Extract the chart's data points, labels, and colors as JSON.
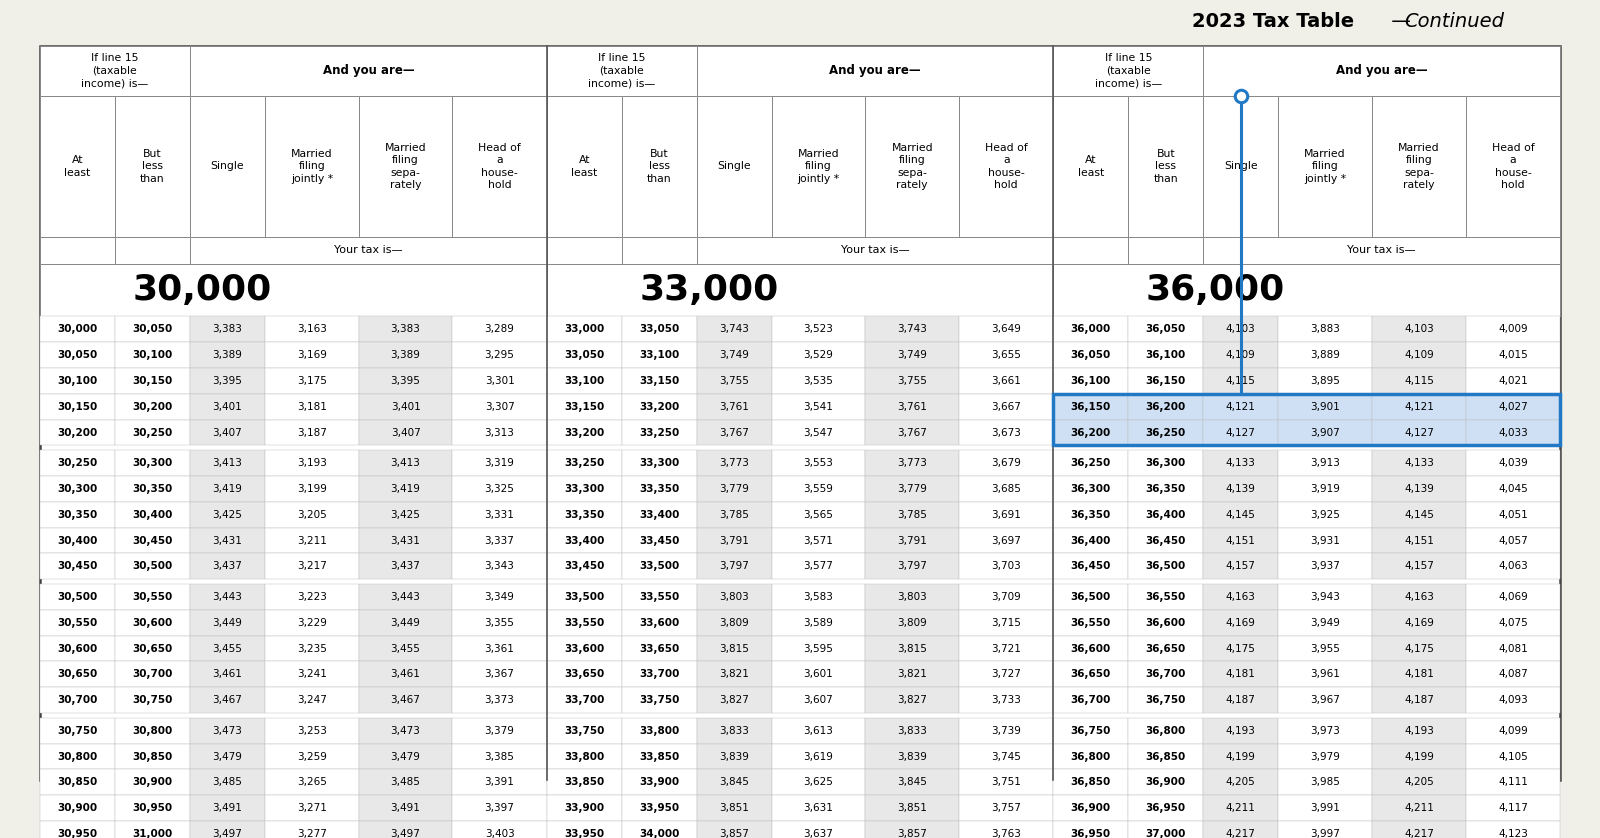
{
  "title_bold": "2023 Tax Table",
  "title_dash": " — ",
  "title_italic": "Continued",
  "bg_color": "#f0efe8",
  "table_bg": "#ffffff",
  "section_labels": [
    "30,000",
    "33,000",
    "36,000"
  ],
  "col_headers_left": [
    "At\nleast",
    "But\nless\nthan"
  ],
  "col_headers_right": [
    "Single",
    "Married\nfiling\njointly *",
    "Married\nfiling\nsepa-\nrately",
    "Head of\na\nhouse-\nhold"
  ],
  "sections": [
    {
      "rows": [
        [
          30000,
          30050,
          3383,
          3163,
          3383,
          3289
        ],
        [
          30050,
          30100,
          3389,
          3169,
          3389,
          3295
        ],
        [
          30100,
          30150,
          3395,
          3175,
          3395,
          3301
        ],
        [
          30150,
          30200,
          3401,
          3181,
          3401,
          3307
        ],
        [
          30200,
          30250,
          3407,
          3187,
          3407,
          3313
        ],
        [
          30250,
          30300,
          3413,
          3193,
          3413,
          3319
        ],
        [
          30300,
          30350,
          3419,
          3199,
          3419,
          3325
        ],
        [
          30350,
          30400,
          3425,
          3205,
          3425,
          3331
        ],
        [
          30400,
          30450,
          3431,
          3211,
          3431,
          3337
        ],
        [
          30450,
          30500,
          3437,
          3217,
          3437,
          3343
        ],
        [
          30500,
          30550,
          3443,
          3223,
          3443,
          3349
        ],
        [
          30550,
          30600,
          3449,
          3229,
          3449,
          3355
        ],
        [
          30600,
          30650,
          3455,
          3235,
          3455,
          3361
        ],
        [
          30650,
          30700,
          3461,
          3241,
          3461,
          3367
        ],
        [
          30700,
          30750,
          3467,
          3247,
          3467,
          3373
        ],
        [
          30750,
          30800,
          3473,
          3253,
          3473,
          3379
        ],
        [
          30800,
          30850,
          3479,
          3259,
          3479,
          3385
        ],
        [
          30850,
          30900,
          3485,
          3265,
          3485,
          3391
        ],
        [
          30900,
          30950,
          3491,
          3271,
          3491,
          3397
        ],
        [
          30950,
          31000,
          3497,
          3277,
          3497,
          3403
        ]
      ]
    },
    {
      "rows": [
        [
          33000,
          33050,
          3743,
          3523,
          3743,
          3649
        ],
        [
          33050,
          33100,
          3749,
          3529,
          3749,
          3655
        ],
        [
          33100,
          33150,
          3755,
          3535,
          3755,
          3661
        ],
        [
          33150,
          33200,
          3761,
          3541,
          3761,
          3667
        ],
        [
          33200,
          33250,
          3767,
          3547,
          3767,
          3673
        ],
        [
          33250,
          33300,
          3773,
          3553,
          3773,
          3679
        ],
        [
          33300,
          33350,
          3779,
          3559,
          3779,
          3685
        ],
        [
          33350,
          33400,
          3785,
          3565,
          3785,
          3691
        ],
        [
          33400,
          33450,
          3791,
          3571,
          3791,
          3697
        ],
        [
          33450,
          33500,
          3797,
          3577,
          3797,
          3703
        ],
        [
          33500,
          33550,
          3803,
          3583,
          3803,
          3709
        ],
        [
          33550,
          33600,
          3809,
          3589,
          3809,
          3715
        ],
        [
          33600,
          33650,
          3815,
          3595,
          3815,
          3721
        ],
        [
          33650,
          33700,
          3821,
          3601,
          3821,
          3727
        ],
        [
          33700,
          33750,
          3827,
          3607,
          3827,
          3733
        ],
        [
          33750,
          33800,
          3833,
          3613,
          3833,
          3739
        ],
        [
          33800,
          33850,
          3839,
          3619,
          3839,
          3745
        ],
        [
          33850,
          33900,
          3845,
          3625,
          3845,
          3751
        ],
        [
          33900,
          33950,
          3851,
          3631,
          3851,
          3757
        ],
        [
          33950,
          34000,
          3857,
          3637,
          3857,
          3763
        ]
      ]
    },
    {
      "rows": [
        [
          36000,
          36050,
          4103,
          3883,
          4103,
          4009
        ],
        [
          36050,
          36100,
          4109,
          3889,
          4109,
          4015
        ],
        [
          36100,
          36150,
          4115,
          3895,
          4115,
          4021
        ],
        [
          36150,
          36200,
          4121,
          3901,
          4121,
          4027
        ],
        [
          36200,
          36250,
          4127,
          3907,
          4127,
          4033
        ],
        [
          36250,
          36300,
          4133,
          3913,
          4133,
          4039
        ],
        [
          36300,
          36350,
          4139,
          3919,
          4139,
          4045
        ],
        [
          36350,
          36400,
          4145,
          3925,
          4145,
          4051
        ],
        [
          36400,
          36450,
          4151,
          3931,
          4151,
          4057
        ],
        [
          36450,
          36500,
          4157,
          3937,
          4157,
          4063
        ],
        [
          36500,
          36550,
          4163,
          3943,
          4163,
          4069
        ],
        [
          36550,
          36600,
          4169,
          3949,
          4169,
          4075
        ],
        [
          36600,
          36650,
          4175,
          3955,
          4175,
          4081
        ],
        [
          36650,
          36700,
          4181,
          3961,
          4181,
          4087
        ],
        [
          36700,
          36750,
          4187,
          3967,
          4187,
          4093
        ],
        [
          36750,
          36800,
          4193,
          3973,
          4193,
          4099
        ],
        [
          36800,
          36850,
          4199,
          3979,
          4199,
          4105
        ],
        [
          36850,
          36900,
          4205,
          3985,
          4205,
          4111
        ],
        [
          36900,
          36950,
          4211,
          3991,
          4211,
          4117
        ],
        [
          36950,
          37000,
          4217,
          3997,
          4217,
          4123
        ]
      ]
    }
  ],
  "highlight_rows": [
    3,
    4
  ],
  "highlight_section": 2,
  "blue_color": "#2178c4",
  "highlight_bg": "#cfe0f5",
  "stripe_color": "#e8e8e8",
  "border_dark": "#444444",
  "border_light": "#aaaaaa"
}
